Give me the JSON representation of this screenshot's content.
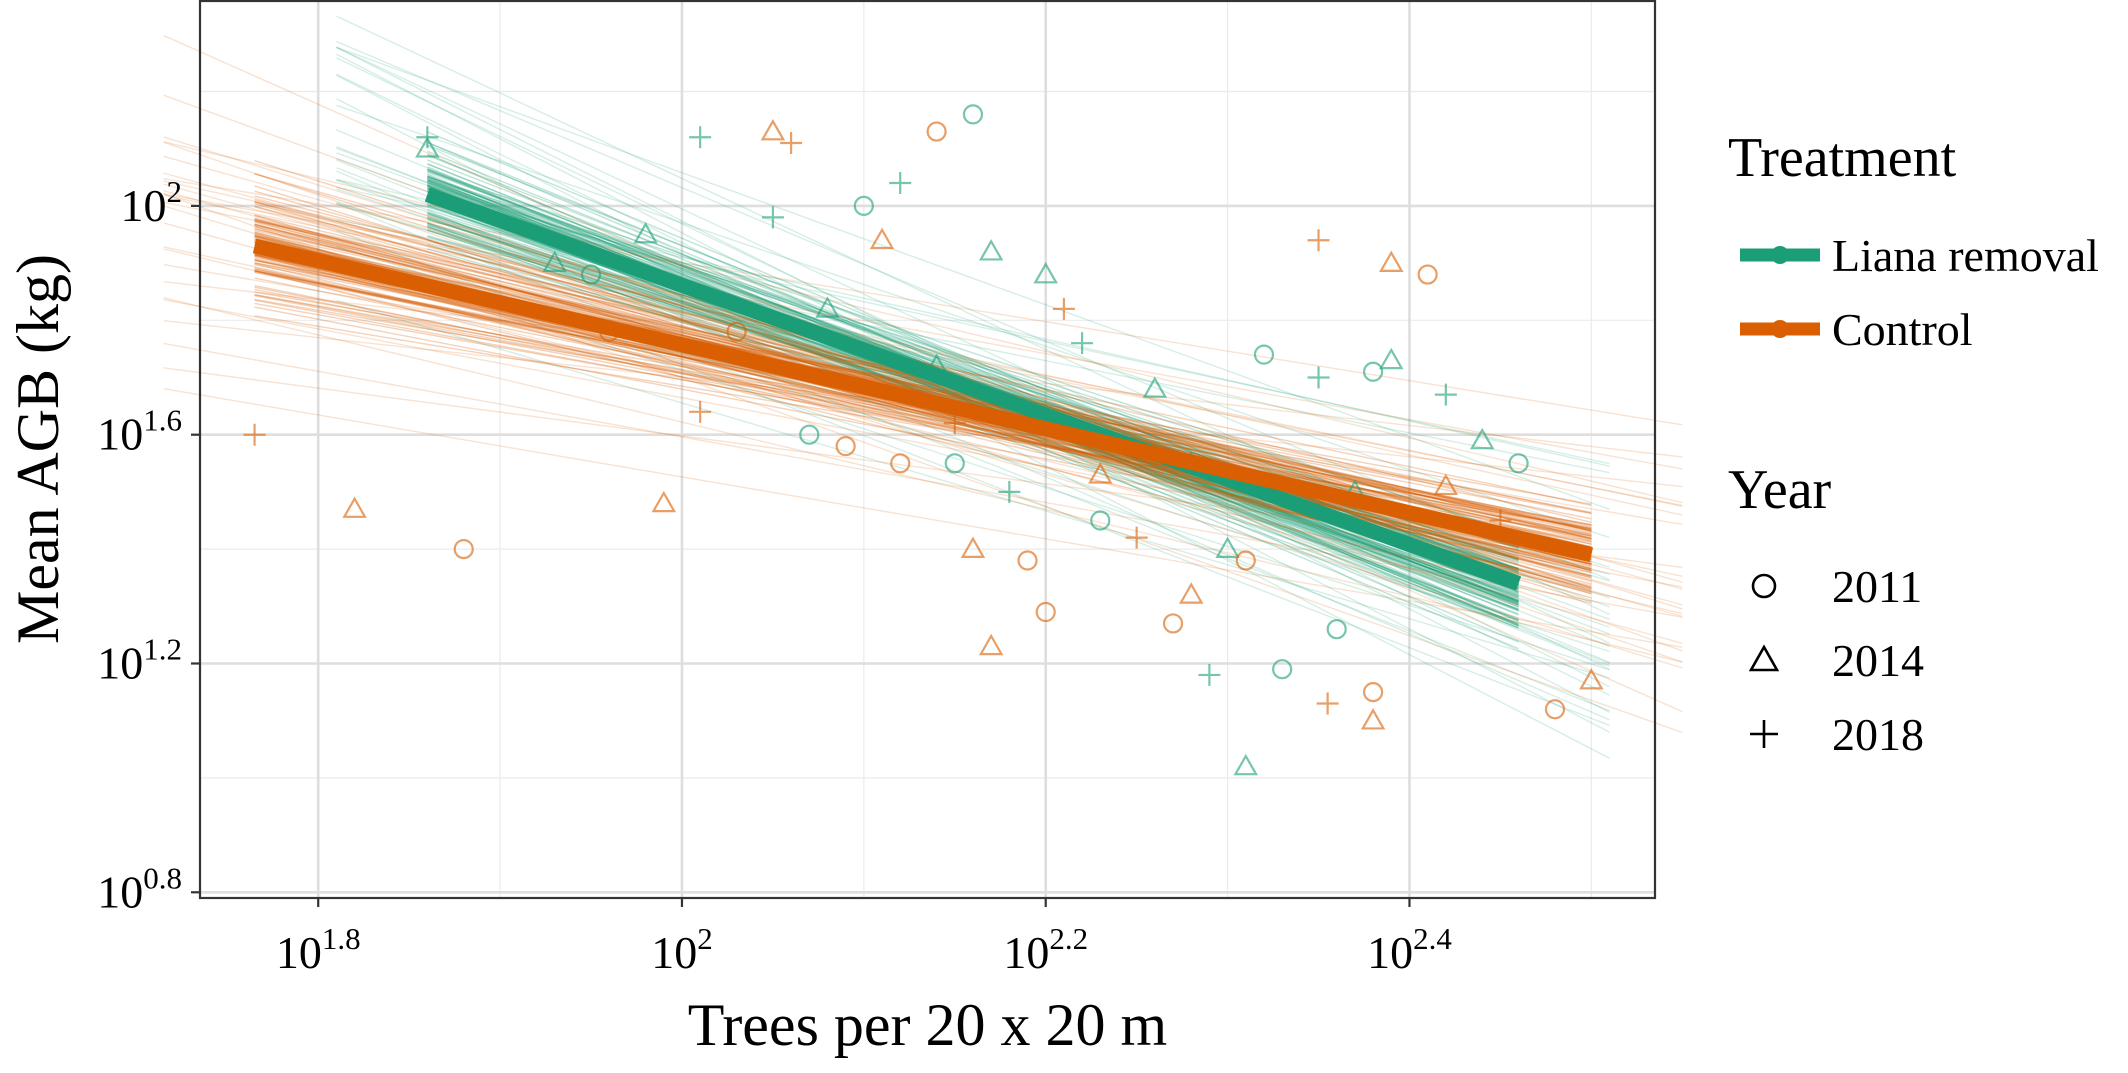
{
  "chart_data": {
    "type": "scatter",
    "xlabel": "Trees per 20 x 20 m",
    "ylabel": "Mean AGB (kg)",
    "x_scale": "log10",
    "y_scale": "log10",
    "xlim_log10": [
      1.735,
      2.535
    ],
    "ylim_log10": [
      0.79,
      2.36
    ],
    "x_ticks": [
      {
        "base": "10",
        "exp": "1.8",
        "value_log10": 1.8
      },
      {
        "base": "10",
        "exp": "2",
        "value_log10": 2.0
      },
      {
        "base": "10",
        "exp": "2.2",
        "value_log10": 2.2
      },
      {
        "base": "10",
        "exp": "2.4",
        "value_log10": 2.4
      }
    ],
    "y_ticks": [
      {
        "base": "10",
        "exp": "0.8",
        "value_log10": 0.8
      },
      {
        "base": "10",
        "exp": "1.2",
        "value_log10": 1.2
      },
      {
        "base": "10",
        "exp": "1.6",
        "value_log10": 1.6
      },
      {
        "base": "10",
        "exp": "2",
        "value_log10": 2.0
      }
    ],
    "grid": true,
    "legend_position": "right",
    "legends": [
      {
        "title": "Treatment",
        "entries": [
          {
            "label": "Liana removal",
            "color": "#1b9e77"
          },
          {
            "label": "Control",
            "color": "#d95f02"
          }
        ]
      },
      {
        "title": "Year",
        "entries": [
          {
            "label": "2011",
            "shape": "circle"
          },
          {
            "label": "2014",
            "shape": "triangle"
          },
          {
            "label": "2018",
            "shape": "plus"
          }
        ]
      }
    ],
    "fit_lines": [
      {
        "name": "Liana removal",
        "color": "#1b9e77",
        "x_log10": [
          1.86,
          2.46
        ],
        "y_log10": [
          2.02,
          1.34
        ]
      },
      {
        "name": "Control",
        "color": "#d95f02",
        "x_log10": [
          1.765,
          2.5
        ],
        "y_log10": [
          1.93,
          1.39
        ]
      }
    ],
    "series": [
      {
        "name": "Liana removal",
        "color": "#1b9e77",
        "points": [
          {
            "x": 1.86,
            "y": 2.1,
            "year": "2014"
          },
          {
            "x": 1.86,
            "y": 2.12,
            "year": "2018"
          },
          {
            "x": 1.93,
            "y": 1.9,
            "year": "2014"
          },
          {
            "x": 1.95,
            "y": 1.88,
            "year": "2011"
          },
          {
            "x": 1.98,
            "y": 1.95,
            "year": "2014"
          },
          {
            "x": 2.01,
            "y": 2.12,
            "year": "2018"
          },
          {
            "x": 2.05,
            "y": 1.98,
            "year": "2018"
          },
          {
            "x": 2.07,
            "y": 1.6,
            "year": "2011"
          },
          {
            "x": 2.08,
            "y": 1.82,
            "year": "2014"
          },
          {
            "x": 2.1,
            "y": 2.0,
            "year": "2011"
          },
          {
            "x": 2.12,
            "y": 2.04,
            "year": "2018"
          },
          {
            "x": 2.14,
            "y": 1.72,
            "year": "2014"
          },
          {
            "x": 2.15,
            "y": 1.55,
            "year": "2011"
          },
          {
            "x": 2.16,
            "y": 2.16,
            "year": "2011"
          },
          {
            "x": 2.17,
            "y": 1.92,
            "year": "2014"
          },
          {
            "x": 2.18,
            "y": 1.5,
            "year": "2018"
          },
          {
            "x": 2.2,
            "y": 1.88,
            "year": "2014"
          },
          {
            "x": 2.22,
            "y": 1.76,
            "year": "2018"
          },
          {
            "x": 2.23,
            "y": 1.45,
            "year": "2011"
          },
          {
            "x": 2.26,
            "y": 1.68,
            "year": "2014"
          },
          {
            "x": 2.28,
            "y": 1.55,
            "year": "2018"
          },
          {
            "x": 2.3,
            "y": 1.4,
            "year": "2014"
          },
          {
            "x": 2.32,
            "y": 1.74,
            "year": "2011"
          },
          {
            "x": 2.33,
            "y": 1.19,
            "year": "2011"
          },
          {
            "x": 2.35,
            "y": 1.7,
            "year": "2018"
          },
          {
            "x": 2.37,
            "y": 1.5,
            "year": "2014"
          },
          {
            "x": 2.38,
            "y": 1.71,
            "year": "2011"
          },
          {
            "x": 2.39,
            "y": 1.73,
            "year": "2014"
          },
          {
            "x": 2.42,
            "y": 1.67,
            "year": "2018"
          },
          {
            "x": 2.44,
            "y": 1.59,
            "year": "2014"
          },
          {
            "x": 2.46,
            "y": 1.55,
            "year": "2011"
          },
          {
            "x": 2.31,
            "y": 1.02,
            "year": "2014"
          },
          {
            "x": 2.29,
            "y": 1.18,
            "year": "2018"
          },
          {
            "x": 2.36,
            "y": 1.26,
            "year": "2011"
          }
        ]
      },
      {
        "name": "Control",
        "color": "#d95f02",
        "points": [
          {
            "x": 1.765,
            "y": 1.6,
            "year": "2018"
          },
          {
            "x": 1.82,
            "y": 1.47,
            "year": "2014"
          },
          {
            "x": 1.88,
            "y": 1.4,
            "year": "2011"
          },
          {
            "x": 1.96,
            "y": 1.78,
            "year": "2011"
          },
          {
            "x": 1.99,
            "y": 1.48,
            "year": "2014"
          },
          {
            "x": 2.01,
            "y": 1.64,
            "year": "2018"
          },
          {
            "x": 2.03,
            "y": 1.78,
            "year": "2011"
          },
          {
            "x": 2.05,
            "y": 2.13,
            "year": "2014"
          },
          {
            "x": 2.06,
            "y": 2.11,
            "year": "2018"
          },
          {
            "x": 2.09,
            "y": 1.58,
            "year": "2011"
          },
          {
            "x": 2.11,
            "y": 1.94,
            "year": "2014"
          },
          {
            "x": 2.12,
            "y": 1.55,
            "year": "2011"
          },
          {
            "x": 2.14,
            "y": 2.13,
            "year": "2011"
          },
          {
            "x": 2.15,
            "y": 1.62,
            "year": "2018"
          },
          {
            "x": 2.16,
            "y": 1.4,
            "year": "2014"
          },
          {
            "x": 2.17,
            "y": 1.23,
            "year": "2014"
          },
          {
            "x": 2.19,
            "y": 1.38,
            "year": "2011"
          },
          {
            "x": 2.2,
            "y": 1.29,
            "year": "2011"
          },
          {
            "x": 2.21,
            "y": 1.82,
            "year": "2018"
          },
          {
            "x": 2.23,
            "y": 1.53,
            "year": "2014"
          },
          {
            "x": 2.25,
            "y": 1.42,
            "year": "2018"
          },
          {
            "x": 2.27,
            "y": 1.27,
            "year": "2011"
          },
          {
            "x": 2.28,
            "y": 1.32,
            "year": "2014"
          },
          {
            "x": 2.31,
            "y": 1.38,
            "year": "2011"
          },
          {
            "x": 2.35,
            "y": 1.94,
            "year": "2018"
          },
          {
            "x": 2.355,
            "y": 1.13,
            "year": "2018"
          },
          {
            "x": 2.38,
            "y": 1.15,
            "year": "2011"
          },
          {
            "x": 2.38,
            "y": 1.1,
            "year": "2014"
          },
          {
            "x": 2.39,
            "y": 1.9,
            "year": "2014"
          },
          {
            "x": 2.41,
            "y": 1.88,
            "year": "2011"
          },
          {
            "x": 2.42,
            "y": 1.51,
            "year": "2014"
          },
          {
            "x": 2.48,
            "y": 1.12,
            "year": "2011"
          },
          {
            "x": 2.5,
            "y": 1.17,
            "year": "2014"
          },
          {
            "x": 2.45,
            "y": 1.45,
            "year": "2018"
          }
        ]
      }
    ]
  }
}
